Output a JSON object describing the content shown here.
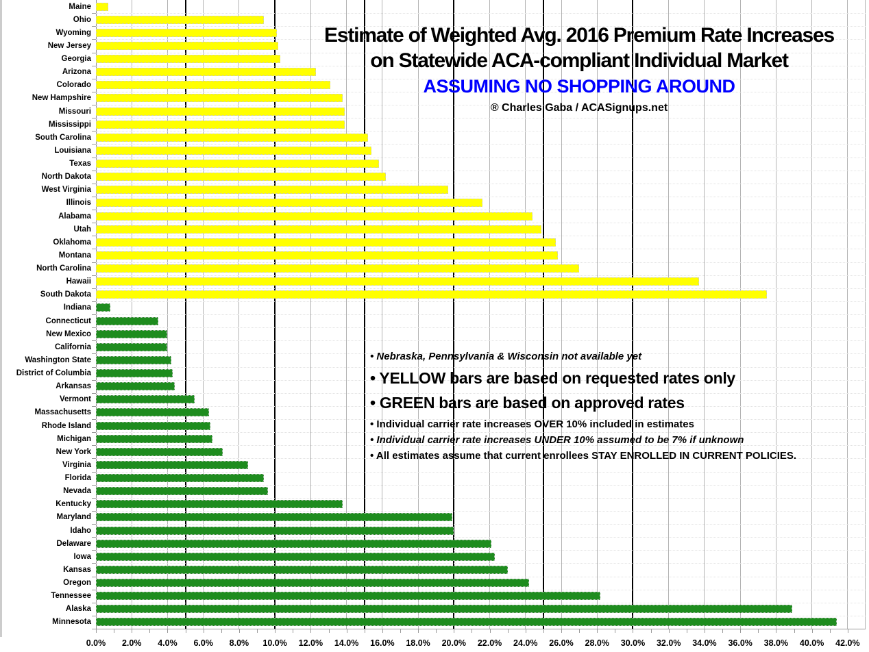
{
  "title": {
    "line1": "Estimate of Weighted Avg. 2016 Premium Rate Increases",
    "line2": "on Statewide ACA-compliant Individual Market",
    "highlight": "ASSUMING NO SHOPPING AROUND",
    "credit": "® Charles Gaba / ACASignups.net"
  },
  "annotations": {
    "unavailable": "• Nebraska, Pennsylvania & Wisconsin not available yet",
    "yellow": "• YELLOW bars are based on requested rates only",
    "green": "• GREEN bars are based on approved rates",
    "over10": "• Individual carrier rate increases OVER 10% included in estimates",
    "under10": "• Individual carrier rate increases UNDER 10% assumed to be 7% if unknown",
    "stay": "• All estimates assume that current enrollees STAY ENROLLED IN CURRENT POLICIES."
  },
  "colors": {
    "requested": "#ffff00",
    "approved": "#1e8c1e",
    "highlight_text": "#0000ff",
    "gridline": "#b3b3b3",
    "heavy_gridline": "#000000"
  },
  "chart_data": {
    "type": "bar",
    "orientation": "horizontal",
    "title": "Estimate of Weighted Avg. 2016 Premium Rate Increases on Statewide ACA-compliant Individual Market — ASSUMING NO SHOPPING AROUND",
    "xlabel": "",
    "ylabel": "",
    "x_axis": {
      "min": 0,
      "max": 42,
      "label_step": 2,
      "minor_tick_step": 1,
      "tick_suffix": "%",
      "heavy_lines": [
        5,
        10,
        15,
        20,
        25,
        30
      ],
      "render_max": 43.0
    },
    "legend": [
      {
        "name": "requested",
        "label": "YELLOW bars (requested rates)",
        "color": "#ffff00"
      },
      {
        "name": "approved",
        "label": "GREEN bars (approved rates)",
        "color": "#1e8c1e"
      }
    ],
    "bars": [
      {
        "state": "Maine",
        "value": 0.7,
        "group": "requested"
      },
      {
        "state": "Ohio",
        "value": 9.4,
        "group": "requested"
      },
      {
        "state": "Wyoming",
        "value": 10.1,
        "group": "requested"
      },
      {
        "state": "New Jersey",
        "value": 10.2,
        "group": "requested"
      },
      {
        "state": "Georgia",
        "value": 10.3,
        "group": "requested"
      },
      {
        "state": "Arizona",
        "value": 12.3,
        "group": "requested"
      },
      {
        "state": "Colorado",
        "value": 13.1,
        "group": "requested"
      },
      {
        "state": "New Hampshire",
        "value": 13.8,
        "group": "requested"
      },
      {
        "state": "Missouri",
        "value": 13.9,
        "group": "requested"
      },
      {
        "state": "Mississippi",
        "value": 13.9,
        "group": "requested"
      },
      {
        "state": "South Carolina",
        "value": 15.2,
        "group": "requested"
      },
      {
        "state": "Louisiana",
        "value": 15.4,
        "group": "requested"
      },
      {
        "state": "Texas",
        "value": 15.8,
        "group": "requested"
      },
      {
        "state": "North Dakota",
        "value": 16.2,
        "group": "requested"
      },
      {
        "state": "West Virginia",
        "value": 19.7,
        "group": "requested"
      },
      {
        "state": "Illinois",
        "value": 21.6,
        "group": "requested"
      },
      {
        "state": "Alabama",
        "value": 24.4,
        "group": "requested"
      },
      {
        "state": "Utah",
        "value": 24.9,
        "group": "requested"
      },
      {
        "state": "Oklahoma",
        "value": 25.7,
        "group": "requested"
      },
      {
        "state": "Montana",
        "value": 25.8,
        "group": "requested"
      },
      {
        "state": "North Carolina",
        "value": 27.0,
        "group": "requested"
      },
      {
        "state": "Hawaii",
        "value": 33.7,
        "group": "requested"
      },
      {
        "state": "South Dakota",
        "value": 37.5,
        "group": "requested"
      },
      {
        "state": "Indiana",
        "value": 0.8,
        "group": "approved"
      },
      {
        "state": "Connecticut",
        "value": 3.5,
        "group": "approved"
      },
      {
        "state": "New Mexico",
        "value": 4.0,
        "group": "approved"
      },
      {
        "state": "California",
        "value": 4.0,
        "group": "approved"
      },
      {
        "state": "Washington State",
        "value": 4.2,
        "group": "approved"
      },
      {
        "state": "District of Columbia",
        "value": 4.3,
        "group": "approved"
      },
      {
        "state": "Arkansas",
        "value": 4.4,
        "group": "approved"
      },
      {
        "state": "Vermont",
        "value": 5.5,
        "group": "approved"
      },
      {
        "state": "Massachusetts",
        "value": 6.3,
        "group": "approved"
      },
      {
        "state": "Rhode Island",
        "value": 6.4,
        "group": "approved"
      },
      {
        "state": "Michigan",
        "value": 6.5,
        "group": "approved"
      },
      {
        "state": "New York",
        "value": 7.1,
        "group": "approved"
      },
      {
        "state": "Virginia",
        "value": 8.5,
        "group": "approved"
      },
      {
        "state": "Florida",
        "value": 9.4,
        "group": "approved"
      },
      {
        "state": "Nevada",
        "value": 9.6,
        "group": "approved"
      },
      {
        "state": "Kentucky",
        "value": 13.8,
        "group": "approved"
      },
      {
        "state": "Maryland",
        "value": 19.9,
        "group": "approved"
      },
      {
        "state": "Idaho",
        "value": 20.0,
        "group": "approved"
      },
      {
        "state": "Delaware",
        "value": 22.1,
        "group": "approved"
      },
      {
        "state": "Iowa",
        "value": 22.3,
        "group": "approved"
      },
      {
        "state": "Kansas",
        "value": 23.0,
        "group": "approved"
      },
      {
        "state": "Oregon",
        "value": 24.2,
        "group": "approved"
      },
      {
        "state": "Tennessee",
        "value": 28.2,
        "group": "approved"
      },
      {
        "state": "Alaska",
        "value": 38.9,
        "group": "approved"
      },
      {
        "state": "Minnesota",
        "value": 41.4,
        "group": "approved"
      }
    ]
  }
}
